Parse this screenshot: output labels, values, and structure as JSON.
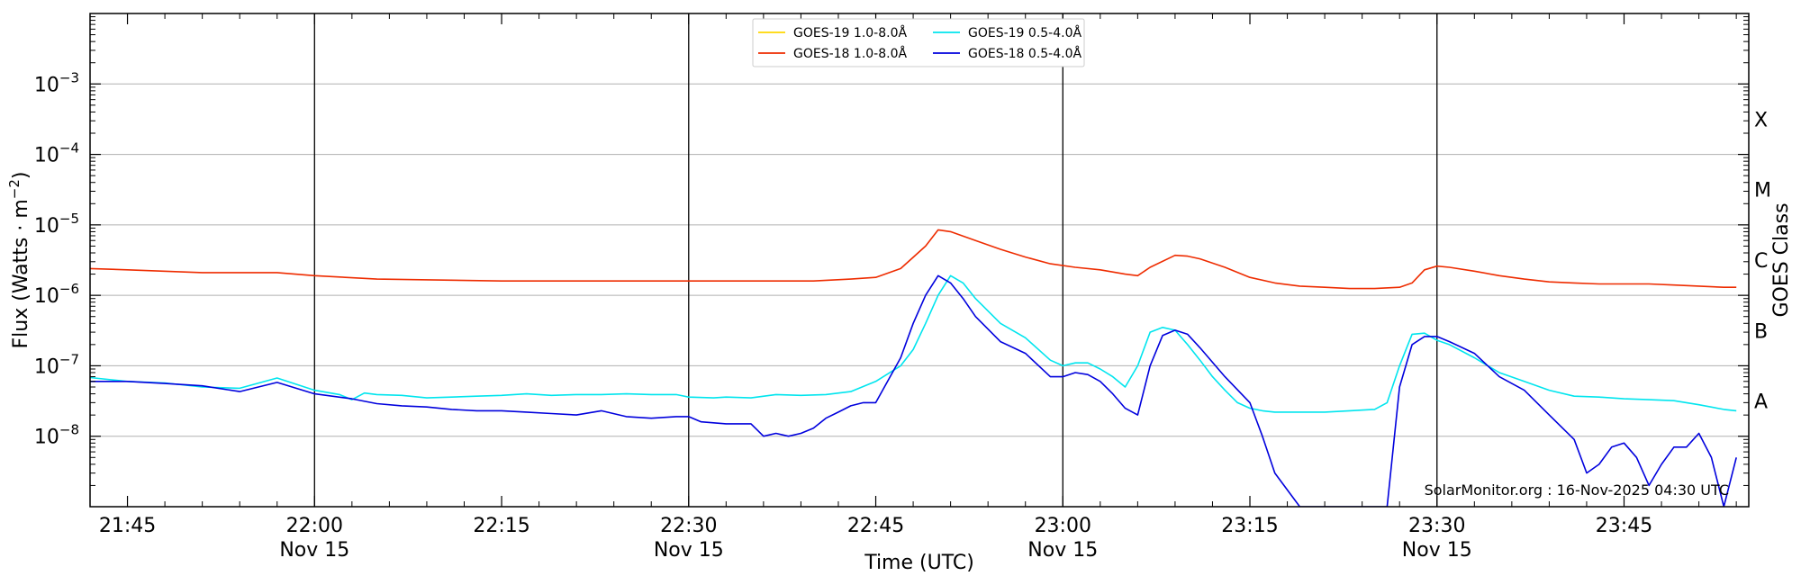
{
  "chart_data": {
    "type": "line",
    "title": "",
    "xlabel": "Time (UTC)",
    "ylabel_text": "Flux (Watts · m",
    "ylabel_exp": "−2",
    "ylabel_close": ")",
    "right_ylabel": "GOES Class",
    "x_unit": "minutes since 21:45 UTC",
    "xlim": [
      -3,
      130
    ],
    "ylog": true,
    "ylim_exp": [
      -9,
      -2
    ],
    "y_ticks": [
      {
        "exp": -8,
        "base": "10",
        "sup": "−8"
      },
      {
        "exp": -7,
        "base": "10",
        "sup": "−7"
      },
      {
        "exp": -6,
        "base": "10",
        "sup": "−6"
      },
      {
        "exp": -5,
        "base": "10",
        "sup": "−5"
      },
      {
        "exp": -4,
        "base": "10",
        "sup": "−4"
      },
      {
        "exp": -3,
        "base": "10",
        "sup": "−3"
      }
    ],
    "x_ticks": [
      {
        "t": 0,
        "label": "21:45",
        "sub": ""
      },
      {
        "t": 15,
        "label": "22:00",
        "sub": "Nov 15"
      },
      {
        "t": 30,
        "label": "22:15",
        "sub": ""
      },
      {
        "t": 45,
        "label": "22:30",
        "sub": "Nov 15"
      },
      {
        "t": 60,
        "label": "22:45",
        "sub": ""
      },
      {
        "t": 75,
        "label": "23:00",
        "sub": "Nov 15"
      },
      {
        "t": 90,
        "label": "23:15",
        "sub": ""
      },
      {
        "t": 105,
        "label": "23:30",
        "sub": "Nov 15"
      },
      {
        "t": 120,
        "label": "23:45",
        "sub": ""
      }
    ],
    "vertical_lines": [
      15,
      45,
      75,
      105
    ],
    "grid_horizontal": true,
    "classes": [
      {
        "label": "A",
        "exp": -7.5
      },
      {
        "label": "B",
        "exp": -6.5
      },
      {
        "label": "C",
        "exp": -5.5
      },
      {
        "label": "M",
        "exp": -4.5
      },
      {
        "label": "X",
        "exp": -3.5
      }
    ],
    "legend_position": "top-center",
    "series": [
      {
        "name": "GOES-19 1.0-8.0Å",
        "color": "#ffd700",
        "t": [],
        "flux": []
      },
      {
        "name": "GOES-19 0.5-4.0Å",
        "color": "#00e5ee",
        "t": [
          -3,
          0,
          3,
          6,
          9,
          12,
          15,
          17,
          18,
          19,
          20,
          22,
          24,
          26,
          28,
          30,
          32,
          34,
          36,
          38,
          40,
          42,
          44,
          45,
          47,
          48,
          50,
          52,
          54,
          56,
          58,
          60,
          62,
          63,
          64,
          65,
          66,
          67,
          68,
          70,
          72,
          74,
          75,
          76,
          77,
          78,
          79,
          80,
          81,
          82,
          83,
          84,
          85,
          86,
          87,
          88,
          89,
          90,
          91,
          92,
          94,
          96,
          98,
          100,
          101,
          102,
          103,
          104,
          105,
          106,
          108,
          110,
          112,
          114,
          116,
          118,
          120,
          122,
          124,
          126,
          128,
          129
        ],
        "flux": [
          6.8e-08,
          6e-08,
          5.7e-08,
          5e-08,
          4.8e-08,
          6.7e-08,
          4.5e-08,
          3.9e-08,
          3.3e-08,
          4.1e-08,
          3.9e-08,
          3.8e-08,
          3.5e-08,
          3.6e-08,
          3.7e-08,
          3.8e-08,
          4e-08,
          3.8e-08,
          3.9e-08,
          3.9e-08,
          4e-08,
          3.9e-08,
          3.9e-08,
          3.6e-08,
          3.5e-08,
          3.6e-08,
          3.5e-08,
          3.9e-08,
          3.8e-08,
          3.9e-08,
          4.3e-08,
          6e-08,
          1e-07,
          1.7e-07,
          4e-07,
          1e-06,
          1.9e-06,
          1.5e-06,
          9e-07,
          4e-07,
          2.5e-07,
          1.2e-07,
          1e-07,
          1.1e-07,
          1.1e-07,
          9e-08,
          7e-08,
          5e-08,
          1e-07,
          3e-07,
          3.5e-07,
          3.2e-07,
          2e-07,
          1.2e-07,
          7e-08,
          4.5e-08,
          3e-08,
          2.5e-08,
          2.3e-08,
          2.2e-08,
          2.2e-08,
          2.2e-08,
          2.3e-08,
          2.4e-08,
          3e-08,
          1e-07,
          2.8e-07,
          2.9e-07,
          2.3e-07,
          2e-07,
          1.3e-07,
          8e-08,
          6e-08,
          4.5e-08,
          3.7e-08,
          3.6e-08,
          3.4e-08,
          3.3e-08,
          3.2e-08,
          2.8e-08,
          2.4e-08,
          2.3e-08
        ]
      },
      {
        "name": "GOES-18 1.0-8.0Å",
        "color": "#ee2c00",
        "t": [
          -3,
          0,
          6,
          12,
          15,
          20,
          30,
          40,
          45,
          50,
          55,
          58,
          60,
          62,
          64,
          65,
          66,
          68,
          70,
          72,
          74,
          76,
          78,
          80,
          81,
          82,
          84,
          85,
          86,
          88,
          90,
          92,
          94,
          96,
          98,
          100,
          102,
          103,
          104,
          105,
          106,
          108,
          110,
          112,
          114,
          116,
          118,
          120,
          122,
          124,
          126,
          128,
          129
        ],
        "flux": [
          2.4e-06,
          2.3e-06,
          2.1e-06,
          2.1e-06,
          1.9e-06,
          1.7e-06,
          1.6e-06,
          1.6e-06,
          1.6e-06,
          1.6e-06,
          1.6e-06,
          1.7e-06,
          1.8e-06,
          2.4e-06,
          5e-06,
          8.5e-06,
          8e-06,
          6e-06,
          4.5e-06,
          3.5e-06,
          2.8e-06,
          2.5e-06,
          2.3e-06,
          2e-06,
          1.9e-06,
          2.5e-06,
          3.7e-06,
          3.6e-06,
          3.3e-06,
          2.5e-06,
          1.8e-06,
          1.5e-06,
          1.35e-06,
          1.3e-06,
          1.25e-06,
          1.25e-06,
          1.3e-06,
          1.5e-06,
          2.3e-06,
          2.6e-06,
          2.5e-06,
          2.2e-06,
          1.9e-06,
          1.7e-06,
          1.55e-06,
          1.5e-06,
          1.45e-06,
          1.45e-06,
          1.45e-06,
          1.4e-06,
          1.35e-06,
          1.3e-06,
          1.3e-06
        ]
      },
      {
        "name": "GOES-18 0.5-4.0Å",
        "color": "#0000dd",
        "t": [
          -3,
          0,
          3,
          6,
          9,
          12,
          15,
          18,
          20,
          22,
          24,
          26,
          28,
          30,
          32,
          34,
          36,
          38,
          40,
          42,
          44,
          45,
          46,
          48,
          50,
          51,
          52,
          53,
          54,
          55,
          56,
          57,
          58,
          59,
          60,
          62,
          63,
          64,
          65,
          66,
          67,
          68,
          70,
          72,
          74,
          75,
          76,
          77,
          78,
          79,
          80,
          81,
          82,
          83,
          84,
          85,
          86,
          88,
          90,
          91,
          92,
          94,
          96,
          98,
          100,
          101,
          102,
          103,
          104,
          105,
          106,
          108,
          110,
          112,
          114,
          116,
          117,
          118,
          119,
          120,
          121,
          122,
          123,
          124,
          125,
          126,
          127,
          128,
          129
        ],
        "flux": [
          6e-08,
          6e-08,
          5.6e-08,
          5.2e-08,
          4.3e-08,
          5.8e-08,
          4e-08,
          3.4e-08,
          2.9e-08,
          2.7e-08,
          2.6e-08,
          2.4e-08,
          2.3e-08,
          2.3e-08,
          2.2e-08,
          2.1e-08,
          2e-08,
          2.3e-08,
          1.9e-08,
          1.8e-08,
          1.9e-08,
          1.9e-08,
          1.6e-08,
          1.5e-08,
          1.5e-08,
          1e-08,
          1.1e-08,
          1e-08,
          1.1e-08,
          1.3e-08,
          1.8e-08,
          2.2e-08,
          2.7e-08,
          3e-08,
          3e-08,
          1.3e-07,
          4e-07,
          1e-06,
          1.9e-06,
          1.5e-06,
          9e-07,
          5e-07,
          2.2e-07,
          1.5e-07,
          7e-08,
          7e-08,
          8e-08,
          7.5e-08,
          6e-08,
          4e-08,
          2.5e-08,
          2e-08,
          1e-07,
          2.7e-07,
          3.2e-07,
          2.8e-07,
          1.8e-07,
          7e-08,
          3e-08,
          1e-08,
          3e-09,
          1e-09,
          1e-09,
          1e-09,
          1e-09,
          1e-09,
          5e-08,
          2e-07,
          2.6e-07,
          2.6e-07,
          2.2e-07,
          1.5e-07,
          7e-08,
          4.5e-08,
          2e-08,
          9e-09,
          3e-09,
          4e-09,
          7e-09,
          8e-09,
          5e-09,
          2e-09,
          4e-09,
          7e-09,
          7e-09,
          1.1e-08,
          5e-09,
          1e-09,
          5e-09
        ]
      }
    ],
    "annotation": "SolarMonitor.org : 16-Nov-2025 04:30 UTC"
  }
}
